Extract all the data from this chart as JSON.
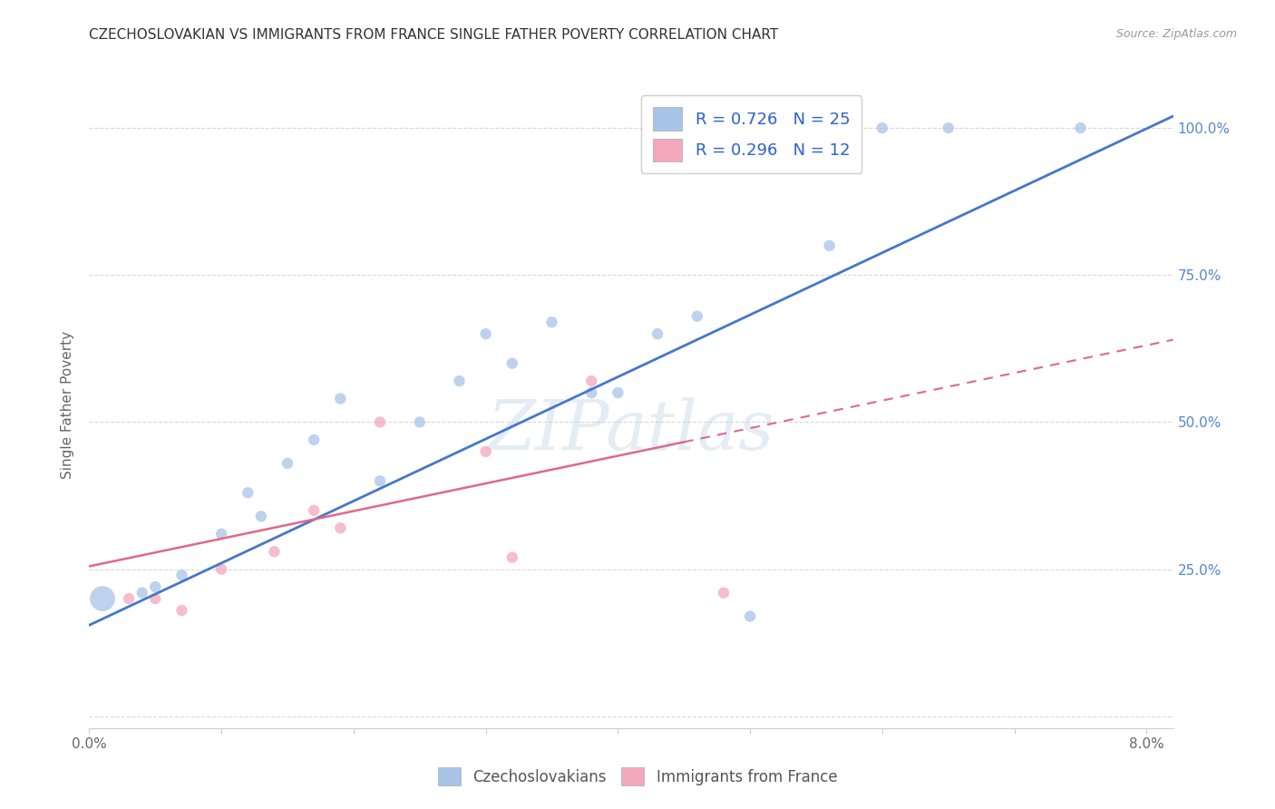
{
  "title": "CZECHOSLOVAKIAN VS IMMIGRANTS FROM FRANCE SINGLE FATHER POVERTY CORRELATION CHART",
  "source": "Source: ZipAtlas.com",
  "ylabel": "Single Father Poverty",
  "legend_color1": "#a8c4e8",
  "legend_color2": "#f4a8bc",
  "background_color": "#ffffff",
  "grid_color": "#d8d8d8",
  "czech_color": "#a8c4e8",
  "france_color": "#f4a8bc",
  "line1_color": "#4477cc",
  "line2_color": "#e06888",
  "watermark": "ZIPatlas",
  "czech_x": [
    0.001,
    0.004,
    0.005,
    0.007,
    0.01,
    0.012,
    0.013,
    0.015,
    0.017,
    0.019,
    0.022,
    0.025,
    0.028,
    0.03,
    0.032,
    0.035,
    0.038,
    0.04,
    0.043,
    0.046,
    0.05,
    0.056,
    0.06,
    0.065,
    0.075
  ],
  "czech_y": [
    0.2,
    0.21,
    0.22,
    0.24,
    0.31,
    0.38,
    0.34,
    0.43,
    0.47,
    0.54,
    0.4,
    0.5,
    0.57,
    0.65,
    0.6,
    0.67,
    0.55,
    0.55,
    0.65,
    0.68,
    0.17,
    0.8,
    1.0,
    1.0,
    1.0
  ],
  "france_x": [
    0.003,
    0.005,
    0.007,
    0.01,
    0.014,
    0.017,
    0.019,
    0.022,
    0.03,
    0.032,
    0.038,
    0.048
  ],
  "france_y": [
    0.2,
    0.2,
    0.18,
    0.25,
    0.28,
    0.35,
    0.32,
    0.5,
    0.45,
    0.27,
    0.57,
    0.21
  ],
  "czech_sizes": [
    400,
    80,
    80,
    80,
    80,
    80,
    80,
    80,
    80,
    80,
    80,
    80,
    80,
    80,
    80,
    80,
    80,
    80,
    80,
    80,
    80,
    80,
    80,
    80,
    80
  ],
  "france_sizes": [
    80,
    80,
    80,
    80,
    80,
    80,
    80,
    80,
    80,
    80,
    80,
    80
  ],
  "xlim": [
    0.0,
    0.082
  ],
  "ylim": [
    -0.02,
    1.08
  ],
  "line1_x0": 0.0,
  "line1_y0": 0.155,
  "line1_x1": 0.082,
  "line1_y1": 1.02,
  "line2_x0": 0.0,
  "line2_y0": 0.255,
  "line2_x1": 0.082,
  "line2_y1": 0.64
}
